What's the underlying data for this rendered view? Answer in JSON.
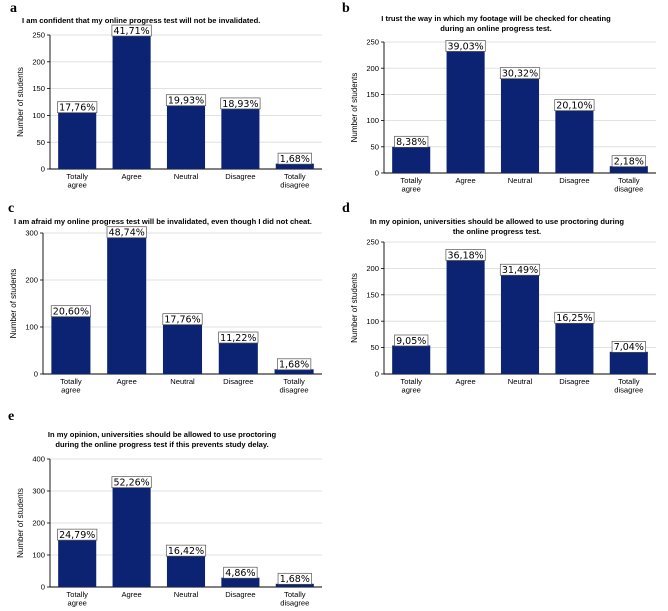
{
  "chart_data": [
    {
      "panel": "a",
      "type": "bar",
      "title": "I am confident that my online progress test will not be invalidated.",
      "ylabel": "Number of students",
      "xlabel": "",
      "ylim": [
        0,
        250
      ],
      "yticks": [
        0,
        50,
        100,
        150,
        200,
        250
      ],
      "categories": [
        "Totally agree",
        "Agree",
        "Neutral",
        "Disagree",
        "Totally disagree"
      ],
      "values": [
        106,
        249,
        119,
        113,
        10
      ],
      "labels": [
        "17,76%",
        "41,71%",
        "19,93%",
        "18,93%",
        "1,68%"
      ],
      "bar_color": "#0c2373"
    },
    {
      "panel": "b",
      "type": "bar",
      "title": "I trust the way in which my footage will be checked for cheating during an online progress test.",
      "ylabel": "Number of students",
      "xlabel": "",
      "ylim": [
        0,
        250
      ],
      "yticks": [
        0,
        50,
        100,
        150,
        200,
        250
      ],
      "categories": [
        "Totally agree",
        "Agree",
        "Neutral",
        "Disagree",
        "Totally disagree"
      ],
      "values": [
        50,
        233,
        181,
        120,
        13
      ],
      "labels": [
        "8,38%",
        "39,03%",
        "30,32%",
        "20,10%",
        "2,18%"
      ],
      "bar_color": "#0c2373"
    },
    {
      "panel": "c",
      "type": "bar",
      "title": "I am afraid my online progress test will be invalidated, even though I did not cheat.",
      "ylabel": "Number of students",
      "xlabel": "",
      "ylim": [
        0,
        300
      ],
      "yticks": [
        0,
        100,
        200,
        300
      ],
      "categories": [
        "Totally agree",
        "Agree",
        "Neutral",
        "Disagree",
        "Totally disagree"
      ],
      "values": [
        123,
        291,
        106,
        67,
        10
      ],
      "labels": [
        "20,60%",
        "48,74%",
        "17,76%",
        "11,22%",
        "1,68%"
      ],
      "bar_color": "#0c2373"
    },
    {
      "panel": "d",
      "type": "bar",
      "title": "In my opinion, universities should be allowed to use proctoring during the online progress test.",
      "ylabel": "Number of students",
      "xlabel": "",
      "ylim": [
        0,
        250
      ],
      "yticks": [
        0,
        50,
        100,
        150,
        200,
        250
      ],
      "categories": [
        "Totally agree",
        "Agree",
        "Neutral",
        "Disagree",
        "Totally disagree"
      ],
      "values": [
        54,
        216,
        188,
        97,
        42
      ],
      "labels": [
        "9,05%",
        "36,18%",
        "31,49%",
        "16,25%",
        "7,04%"
      ],
      "bar_color": "#0c2373"
    },
    {
      "panel": "e",
      "type": "bar",
      "title": "In my opinion, universities should be allowed to use proctoring during the online progress test if this prevents study delay.",
      "ylabel": "Number of students",
      "xlabel": "",
      "ylim": [
        0,
        400
      ],
      "yticks": [
        0,
        100,
        200,
        300,
        400
      ],
      "categories": [
        "Totally agree",
        "Agree",
        "Neutral",
        "Disagree",
        "Totally disagree"
      ],
      "values": [
        148,
        312,
        98,
        29,
        10
      ],
      "labels": [
        "24,79%",
        "52,26%",
        "16,42%",
        "4,86%",
        "1,68%"
      ],
      "bar_color": "#0c2373"
    }
  ]
}
